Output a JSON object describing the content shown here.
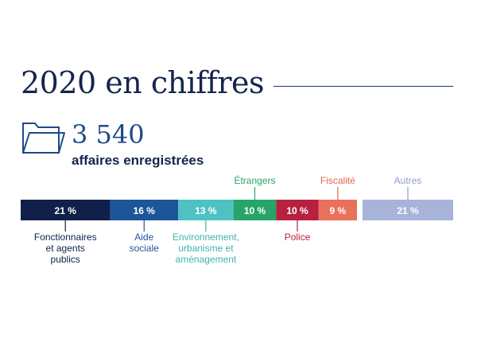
{
  "header": {
    "title": "2020 en chiffres",
    "count": "3 540",
    "count_label": "affaires enregistrées"
  },
  "icons": {
    "folder": "folder-icon"
  },
  "chart_data": {
    "type": "bar",
    "orientation": "horizontal-stacked",
    "unit": "%",
    "segments": [
      {
        "label": "Fonctionnaires et agents publics",
        "lines": [
          "Fonctionnaires",
          "et agents",
          "publics"
        ],
        "value": 21,
        "display": "21 %",
        "color": "#10204a",
        "label_color": "#10204a",
        "label_side": "below"
      },
      {
        "label": "Aide sociale",
        "lines": [
          "Aide",
          "sociale"
        ],
        "value": 16,
        "display": "16 %",
        "color": "#1d5599",
        "label_color": "#1d5599",
        "label_side": "below"
      },
      {
        "label": "Environnement, urbanisme et aménagement",
        "lines": [
          "Environnement,",
          "urbanisme et",
          "aménagement"
        ],
        "value": 13,
        "display": "13 %",
        "color": "#4fc1c3",
        "label_color": "#3fb2b4",
        "label_side": "below"
      },
      {
        "label": "Étrangers",
        "lines": [
          "Étrangers"
        ],
        "value": 10,
        "display": "10 %",
        "color": "#27a46a",
        "label_color": "#27a46a",
        "label_side": "above"
      },
      {
        "label": "Police",
        "lines": [
          "Police"
        ],
        "value": 10,
        "display": "10 %",
        "color": "#b7213f",
        "label_color": "#b7213f",
        "label_side": "below"
      },
      {
        "label": "Fiscalité",
        "lines": [
          "Fiscalité"
        ],
        "value": 9,
        "display": "9 %",
        "color": "#e7715a",
        "label_color": "#e0654f",
        "label_side": "above"
      },
      {
        "label": "Autres",
        "lines": [
          "Autres"
        ],
        "value": 21,
        "display": "21 %",
        "color": "#a7b3d9",
        "label_color": "#8f9bca",
        "label_side": "above",
        "detached": true
      }
    ]
  }
}
